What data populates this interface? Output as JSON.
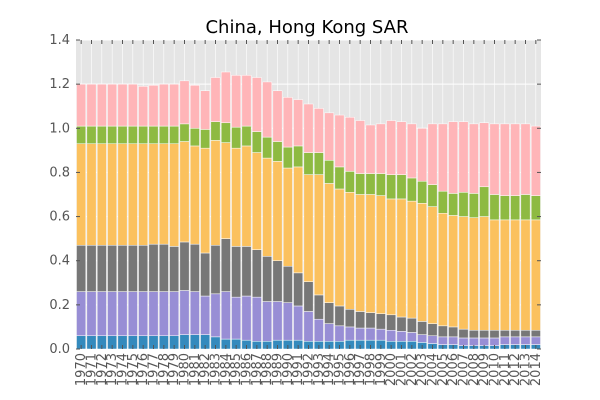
{
  "chart_data": {
    "type": "bar",
    "stacked": true,
    "title": "China, Hong Kong SAR",
    "xlabel": "",
    "ylabel": "",
    "ylim": [
      0,
      1.4
    ],
    "yticks": [
      0.0,
      0.2,
      0.4,
      0.6,
      0.8,
      1.0,
      1.2,
      1.4
    ],
    "ytick_labels": [
      "0.0",
      "0.2",
      "0.4",
      "0.6",
      "0.8",
      "1.0",
      "1.2",
      "1.4"
    ],
    "grid": true,
    "legend": "none",
    "background": "#e5e5e5",
    "categories": [
      "1970",
      "1971",
      "1972",
      "1973",
      "1974",
      "1975",
      "1976",
      "1977",
      "1978",
      "1979",
      "1980",
      "1981",
      "1982",
      "1983",
      "1984",
      "1985",
      "1986",
      "1987",
      "1988",
      "1989",
      "1990",
      "1991",
      "1992",
      "1993",
      "1994",
      "1995",
      "1996",
      "1997",
      "1998",
      "1999",
      "2000",
      "2001",
      "2002",
      "2003",
      "2004",
      "2005",
      "2006",
      "2007",
      "2008",
      "2009",
      "2010",
      "2011",
      "2012",
      "2013",
      "2014"
    ],
    "series": [
      {
        "color": "#348abd",
        "values": [
          0.06,
          0.06,
          0.06,
          0.06,
          0.06,
          0.06,
          0.06,
          0.06,
          0.06,
          0.06,
          0.065,
          0.065,
          0.065,
          0.055,
          0.045,
          0.045,
          0.04,
          0.035,
          0.035,
          0.04,
          0.04,
          0.04,
          0.035,
          0.035,
          0.035,
          0.035,
          0.04,
          0.04,
          0.04,
          0.04,
          0.035,
          0.035,
          0.035,
          0.03,
          0.025,
          0.02,
          0.02,
          0.015,
          0.015,
          0.015,
          0.015,
          0.02,
          0.02,
          0.02,
          0.02
        ]
      },
      {
        "color": "#988ed5",
        "values": [
          0.2,
          0.2,
          0.2,
          0.2,
          0.2,
          0.2,
          0.2,
          0.2,
          0.2,
          0.2,
          0.2,
          0.195,
          0.175,
          0.195,
          0.215,
          0.19,
          0.2,
          0.2,
          0.18,
          0.175,
          0.17,
          0.155,
          0.135,
          0.1,
          0.08,
          0.07,
          0.06,
          0.055,
          0.055,
          0.05,
          0.05,
          0.045,
          0.04,
          0.035,
          0.035,
          0.035,
          0.035,
          0.035,
          0.035,
          0.035,
          0.035,
          0.035,
          0.035,
          0.035,
          0.035
        ]
      },
      {
        "color": "#777777",
        "values": [
          0.21,
          0.21,
          0.21,
          0.21,
          0.21,
          0.21,
          0.21,
          0.215,
          0.215,
          0.205,
          0.22,
          0.215,
          0.195,
          0.22,
          0.24,
          0.23,
          0.225,
          0.215,
          0.205,
          0.185,
          0.165,
          0.15,
          0.135,
          0.11,
          0.095,
          0.09,
          0.08,
          0.075,
          0.07,
          0.07,
          0.07,
          0.065,
          0.065,
          0.06,
          0.055,
          0.05,
          0.045,
          0.04,
          0.035,
          0.035,
          0.035,
          0.03,
          0.03,
          0.03,
          0.03
        ]
      },
      {
        "color": "#fbc15e",
        "values": [
          0.46,
          0.46,
          0.46,
          0.46,
          0.46,
          0.46,
          0.46,
          0.455,
          0.455,
          0.465,
          0.455,
          0.445,
          0.475,
          0.475,
          0.435,
          0.445,
          0.455,
          0.44,
          0.445,
          0.45,
          0.445,
          0.48,
          0.485,
          0.545,
          0.54,
          0.53,
          0.53,
          0.53,
          0.535,
          0.535,
          0.525,
          0.535,
          0.53,
          0.535,
          0.53,
          0.51,
          0.505,
          0.51,
          0.51,
          0.515,
          0.5,
          0.5,
          0.5,
          0.5,
          0.5
        ]
      },
      {
        "color": "#8eba42",
        "values": [
          0.08,
          0.08,
          0.08,
          0.08,
          0.08,
          0.08,
          0.08,
          0.08,
          0.08,
          0.08,
          0.08,
          0.08,
          0.085,
          0.085,
          0.09,
          0.095,
          0.09,
          0.095,
          0.095,
          0.09,
          0.095,
          0.095,
          0.1,
          0.1,
          0.105,
          0.1,
          0.095,
          0.095,
          0.095,
          0.1,
          0.11,
          0.11,
          0.105,
          0.1,
          0.1,
          0.1,
          0.1,
          0.11,
          0.11,
          0.135,
          0.115,
          0.11,
          0.11,
          0.115,
          0.11
        ]
      },
      {
        "color": "#ffb5b8",
        "values": [
          0.19,
          0.19,
          0.19,
          0.19,
          0.19,
          0.19,
          0.18,
          0.185,
          0.19,
          0.19,
          0.195,
          0.195,
          0.175,
          0.2,
          0.23,
          0.235,
          0.23,
          0.245,
          0.25,
          0.23,
          0.225,
          0.21,
          0.22,
          0.2,
          0.215,
          0.235,
          0.245,
          0.24,
          0.22,
          0.225,
          0.245,
          0.24,
          0.245,
          0.24,
          0.275,
          0.305,
          0.325,
          0.32,
          0.315,
          0.29,
          0.32,
          0.325,
          0.325,
          0.32,
          0.315
        ]
      }
    ]
  }
}
